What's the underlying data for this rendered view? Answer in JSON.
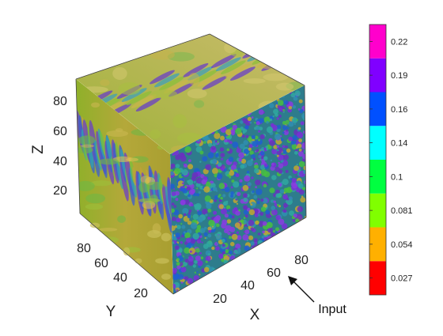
{
  "chart_data": {
    "type": "volume-isosurface",
    "axes": {
      "x": {
        "label": "X",
        "ticks": [
          "20",
          "40",
          "60",
          "80"
        ]
      },
      "y": {
        "label": "Y",
        "ticks": [
          "20",
          "40",
          "60",
          "80"
        ]
      },
      "z": {
        "label": "Z",
        "ticks": [
          "20",
          "40",
          "60",
          "80"
        ]
      }
    },
    "colorbar": {
      "tick_labels": [
        "0.027",
        "0.054",
        "0.081",
        "0.1",
        "0.14",
        "0.16",
        "0.19",
        "0.22"
      ],
      "colors": [
        "#ff0000",
        "#ffb000",
        "#80ff00",
        "#00ff40",
        "#00ffff",
        "#0050ff",
        "#8000ff",
        "#ff00cc"
      ]
    },
    "annotation": {
      "text": "Input"
    }
  }
}
